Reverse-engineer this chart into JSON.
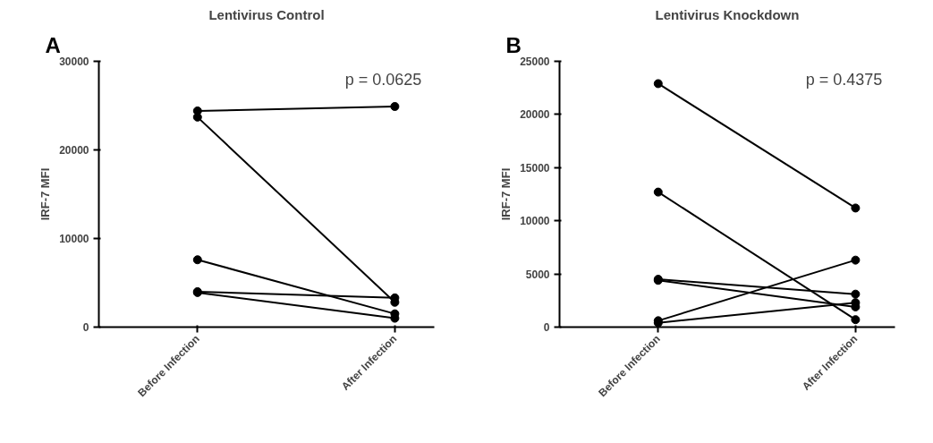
{
  "chart_data": [
    {
      "type": "line",
      "title": "Lentivirus Control",
      "ylabel": "IRF-7 MFI",
      "categories": [
        "Before Infection",
        "After Infection"
      ],
      "ylim": [
        0,
        30000
      ],
      "yticks": [
        0,
        10000,
        20000,
        30000
      ],
      "marker": "circle",
      "line_style": "solid",
      "grid": false,
      "annotations": [
        "A",
        "p = 0.0625"
      ],
      "series": [
        {
          "color": "#000000",
          "values": [
            24400,
            24900
          ]
        },
        {
          "color": "#000000",
          "values": [
            23700,
            2800
          ]
        },
        {
          "color": "#000000",
          "values": [
            7600,
            1500
          ]
        },
        {
          "color": "#000000",
          "values": [
            4000,
            3300
          ]
        },
        {
          "color": "#000000",
          "values": [
            3900,
            1000
          ]
        }
      ]
    },
    {
      "type": "line",
      "title": "Lentivirus Knockdown",
      "ylabel": "IRF-7 MFI",
      "categories": [
        "Before Infection",
        "After Infection"
      ],
      "ylim": [
        0,
        25000
      ],
      "yticks": [
        0,
        5000,
        10000,
        15000,
        20000,
        25000
      ],
      "marker": "circle",
      "line_style": "solid",
      "grid": false,
      "annotations": [
        "B",
        "p = 0.4375"
      ],
      "series": [
        {
          "color": "#000000",
          "values": [
            22900,
            11200
          ]
        },
        {
          "color": "#000000",
          "values": [
            12700,
            700
          ]
        },
        {
          "color": "#000000",
          "values": [
            4500,
            3100
          ]
        },
        {
          "color": "#000000",
          "values": [
            4400,
            1900
          ]
        },
        {
          "color": "#000000",
          "values": [
            600,
            6300
          ]
        },
        {
          "color": "#000000",
          "values": [
            400,
            2300
          ]
        }
      ]
    }
  ]
}
